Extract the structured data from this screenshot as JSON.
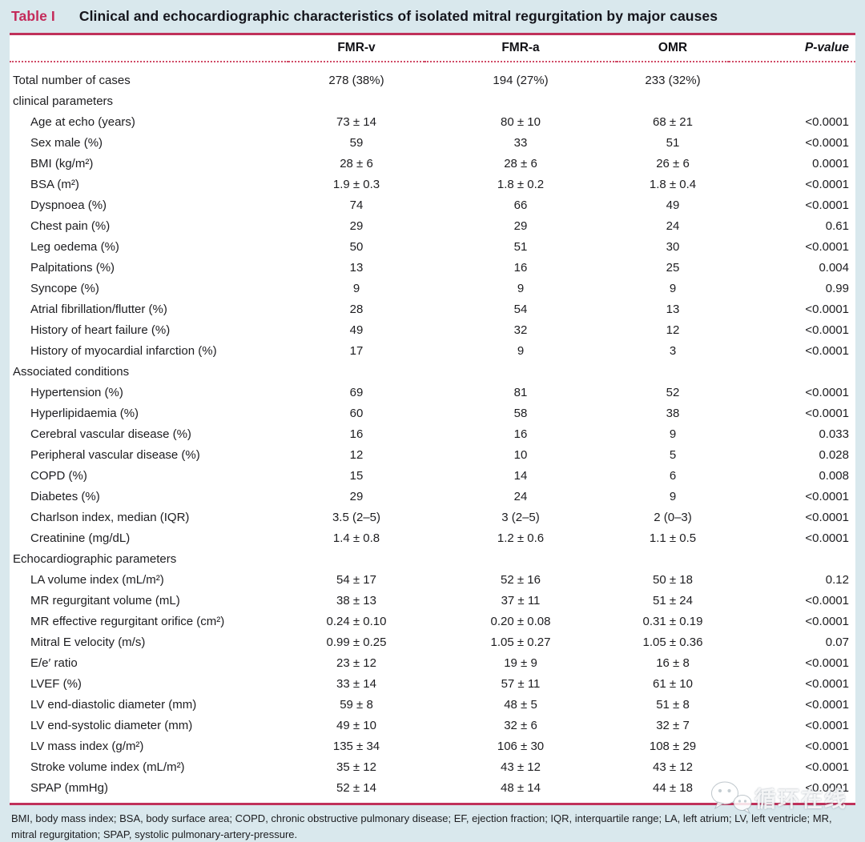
{
  "title": {
    "label": "Table I",
    "text": "Clinical and echocardiographic characteristics of isolated mitral regurgitation by major causes"
  },
  "table": {
    "columns": [
      "FMR-v",
      "FMR-a",
      "OMR",
      "P-value"
    ],
    "rows": [
      {
        "label": "Total number of cases",
        "type": "data",
        "indent": false,
        "values": [
          "278 (38%)",
          "194 (27%)",
          "233 (32%)"
        ],
        "p": ""
      },
      {
        "label": "clinical parameters",
        "type": "section",
        "indent": false,
        "values": [
          "",
          "",
          ""
        ],
        "p": ""
      },
      {
        "label": "Age at echo (years)",
        "type": "data",
        "indent": true,
        "values": [
          "73 ± 14",
          "80 ± 10",
          "68 ± 21"
        ],
        "p": "<0.0001"
      },
      {
        "label": "Sex male (%)",
        "type": "data",
        "indent": true,
        "values": [
          "59",
          "33",
          "51"
        ],
        "p": "<0.0001"
      },
      {
        "label": "BMI (kg/m²)",
        "type": "data",
        "indent": true,
        "values": [
          "28 ± 6",
          "28 ± 6",
          "26 ± 6"
        ],
        "p": "0.0001"
      },
      {
        "label": "BSA (m²)",
        "type": "data",
        "indent": true,
        "values": [
          "1.9 ± 0.3",
          "1.8 ± 0.2",
          "1.8 ± 0.4"
        ],
        "p": "<0.0001"
      },
      {
        "label": "Dyspnoea (%)",
        "type": "data",
        "indent": true,
        "values": [
          "74",
          "66",
          "49"
        ],
        "p": "<0.0001"
      },
      {
        "label": "Chest pain (%)",
        "type": "data",
        "indent": true,
        "values": [
          "29",
          "29",
          "24"
        ],
        "p": "0.61"
      },
      {
        "label": "Leg oedema (%)",
        "type": "data",
        "indent": true,
        "values": [
          "50",
          "51",
          "30"
        ],
        "p": "<0.0001"
      },
      {
        "label": "Palpitations (%)",
        "type": "data",
        "indent": true,
        "values": [
          "13",
          "16",
          "25"
        ],
        "p": "0.004"
      },
      {
        "label": "Syncope (%)",
        "type": "data",
        "indent": true,
        "values": [
          "9",
          "9",
          "9"
        ],
        "p": "0.99"
      },
      {
        "label": "Atrial fibrillation/flutter (%)",
        "type": "data",
        "indent": true,
        "values": [
          "28",
          "54",
          "13"
        ],
        "p": "<0.0001"
      },
      {
        "label": "History of heart failure (%)",
        "type": "data",
        "indent": true,
        "values": [
          "49",
          "32",
          "12"
        ],
        "p": "<0.0001"
      },
      {
        "label": "History of myocardial infarction (%)",
        "type": "data",
        "indent": true,
        "values": [
          "17",
          "9",
          "3"
        ],
        "p": "<0.0001"
      },
      {
        "label": "Associated conditions",
        "type": "section",
        "indent": false,
        "values": [
          "",
          "",
          ""
        ],
        "p": ""
      },
      {
        "label": "Hypertension (%)",
        "type": "data",
        "indent": true,
        "values": [
          "69",
          "81",
          "52"
        ],
        "p": "<0.0001"
      },
      {
        "label": "Hyperlipidaemia (%)",
        "type": "data",
        "indent": true,
        "values": [
          "60",
          "58",
          "38"
        ],
        "p": "<0.0001"
      },
      {
        "label": "Cerebral vascular disease (%)",
        "type": "data",
        "indent": true,
        "values": [
          "16",
          "16",
          "9"
        ],
        "p": "0.033"
      },
      {
        "label": "Peripheral vascular disease (%)",
        "type": "data",
        "indent": true,
        "values": [
          "12",
          "10",
          "5"
        ],
        "p": "0.028"
      },
      {
        "label": "COPD (%)",
        "type": "data",
        "indent": true,
        "values": [
          "15",
          "14",
          "6"
        ],
        "p": "0.008"
      },
      {
        "label": "Diabetes (%)",
        "type": "data",
        "indent": true,
        "values": [
          "29",
          "24",
          "9"
        ],
        "p": "<0.0001"
      },
      {
        "label": "Charlson index, median (IQR)",
        "type": "data",
        "indent": true,
        "values": [
          "3.5 (2–5)",
          "3 (2–5)",
          "2 (0–3)"
        ],
        "p": "<0.0001"
      },
      {
        "label": "Creatinine (mg/dL)",
        "type": "data",
        "indent": true,
        "values": [
          "1.4 ± 0.8",
          "1.2 ± 0.6",
          "1.1 ± 0.5"
        ],
        "p": "<0.0001"
      },
      {
        "label": "Echocardiographic parameters",
        "type": "section",
        "indent": false,
        "values": [
          "",
          "",
          ""
        ],
        "p": ""
      },
      {
        "label": "LA volume index (mL/m²)",
        "type": "data",
        "indent": true,
        "values": [
          "54 ± 17",
          "52 ± 16",
          "50 ± 18"
        ],
        "p": "0.12"
      },
      {
        "label": "MR regurgitant volume (mL)",
        "type": "data",
        "indent": true,
        "values": [
          "38 ± 13",
          "37 ± 11",
          "51 ± 24"
        ],
        "p": "<0.0001"
      },
      {
        "label": "MR effective regurgitant orifice (cm²)",
        "type": "data",
        "indent": true,
        "values": [
          "0.24 ± 0.10",
          "0.20 ± 0.08",
          "0.31 ± 0.19"
        ],
        "p": "<0.0001"
      },
      {
        "label": "Mitral E velocity (m/s)",
        "type": "data",
        "indent": true,
        "values": [
          "0.99 ± 0.25",
          "1.05 ± 0.27",
          "1.05 ± 0.36"
        ],
        "p": "0.07"
      },
      {
        "label": "E/e′ ratio",
        "type": "data",
        "indent": true,
        "values": [
          "23 ± 12",
          "19 ± 9",
          "16 ± 8"
        ],
        "p": "<0.0001"
      },
      {
        "label": "LVEF (%)",
        "type": "data",
        "indent": true,
        "values": [
          "33 ± 14",
          "57 ± 11",
          "61 ± 10"
        ],
        "p": "<0.0001"
      },
      {
        "label": "LV end-diastolic diameter (mm)",
        "type": "data",
        "indent": true,
        "values": [
          "59 ± 8",
          "48 ± 5",
          "51 ± 8"
        ],
        "p": "<0.0001"
      },
      {
        "label": "LV end-systolic diameter (mm)",
        "type": "data",
        "indent": true,
        "values": [
          "49 ± 10",
          "32 ± 6",
          "32 ± 7"
        ],
        "p": "<0.0001"
      },
      {
        "label": "LV mass index (g/m²)",
        "type": "data",
        "indent": true,
        "values": [
          "135 ± 34",
          "106 ± 30",
          "108 ± 29"
        ],
        "p": "<0.0001"
      },
      {
        "label": "Stroke volume index (mL/m²)",
        "type": "data",
        "indent": true,
        "values": [
          "35 ± 12",
          "43 ± 12",
          "43 ± 12"
        ],
        "p": "<0.0001"
      },
      {
        "label": "SPAP (mmHg)",
        "type": "data",
        "indent": true,
        "values": [
          "52 ± 14",
          "48 ± 14",
          "44 ± 18"
        ],
        "p": "<0.0001"
      }
    ]
  },
  "footnote": "BMI, body mass index; BSA, body surface area; COPD, chronic obstructive pulmonary disease; EF, ejection fraction; IQR, interquartile range; LA, left atrium; LV, left ventricle; MR, mitral regurgitation; SPAP, systolic pulmonary-artery-pressure.",
  "watermark": {
    "text": "循环在线",
    "icon": "chat-bubbles-icon"
  },
  "colors": {
    "page_background": "#d9e8ed",
    "panel_background": "#ffffff",
    "rule_red": "#c0315a",
    "dotted_rule_red": "#d04a66",
    "table_number_red": "#c42a5a",
    "text": "#1d1d20"
  }
}
